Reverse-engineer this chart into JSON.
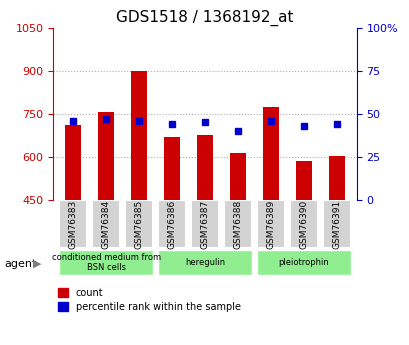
{
  "title": "GDS1518 / 1368192_at",
  "categories": [
    "GSM76383",
    "GSM76384",
    "GSM76385",
    "GSM76386",
    "GSM76387",
    "GSM76388",
    "GSM76389",
    "GSM76390",
    "GSM76391"
  ],
  "count_values": [
    710,
    755,
    900,
    670,
    675,
    615,
    775,
    585,
    605
  ],
  "percentile_values": [
    46,
    47,
    46,
    44,
    45,
    40,
    46,
    43,
    44
  ],
  "ymin": 450,
  "ymax": 1050,
  "yticks": [
    450,
    600,
    750,
    900,
    1050
  ],
  "y2min": 0,
  "y2max": 100,
  "y2ticks": [
    0,
    25,
    50,
    75,
    100
  ],
  "bar_color": "#cc0000",
  "dot_color": "#0000cc",
  "grid_color": "#aaaaaa",
  "bg_color": "#ffffff",
  "tick_label_bg": "#d3d3d3",
  "agent_groups": [
    {
      "label": "conditioned medium from\nBSN cells",
      "start": 0,
      "end": 3,
      "color": "#90ee90"
    },
    {
      "label": "heregulin",
      "start": 3,
      "end": 6,
      "color": "#90ee90"
    },
    {
      "label": "pleiotrophin",
      "start": 6,
      "end": 9,
      "color": "#90ee90"
    }
  ],
  "legend_count_label": "count",
  "legend_pct_label": "percentile rank within the sample",
  "agent_label": "agent",
  "title_fontsize": 11,
  "axis_fontsize": 8,
  "tick_fontsize": 8
}
